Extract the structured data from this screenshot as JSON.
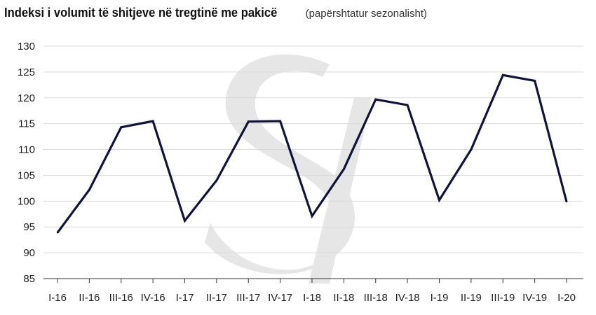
{
  "chart_data": {
    "type": "line",
    "title": "Indeksi i volumit të shitjeve në tregtinë me pakicë",
    "subtitle": "(papërshtatur sezonalisht)",
    "xlabel": "",
    "ylabel": "",
    "categories": [
      "I-16",
      "II-16",
      "III-16",
      "IV-16",
      "I-17",
      "II-17",
      "III-17",
      "IV-17",
      "I-18",
      "II-18",
      "III-18",
      "IV-18",
      "I-19",
      "II-19",
      "III-19",
      "IV-19",
      "I-20"
    ],
    "series": [
      {
        "values": [
          93.9,
          102.2,
          114.3,
          115.5,
          96.2,
          104.0,
          115.4,
          115.5,
          97.1,
          106.2,
          119.7,
          118.6,
          100.2,
          110.0,
          124.4,
          123.3,
          99.9
        ]
      }
    ],
    "ylim": [
      85,
      130
    ],
    "yticks": [
      85,
      90,
      95,
      100,
      105,
      110,
      115,
      120,
      125,
      130
    ],
    "grid": true,
    "line_color": "#101438",
    "grid_color": "#d9d9d9",
    "watermark_color": "#e6e6e6"
  }
}
